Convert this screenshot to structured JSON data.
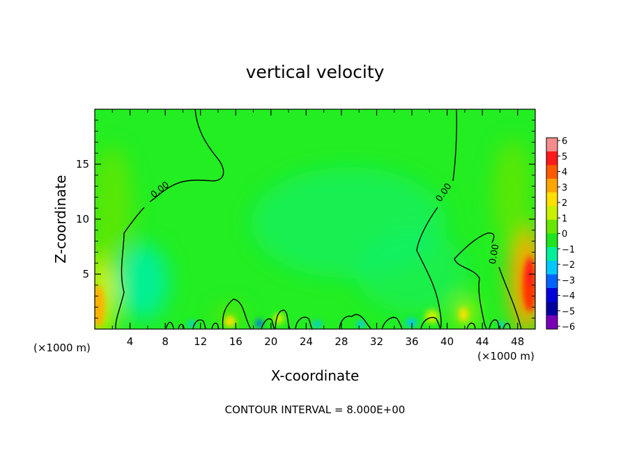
{
  "chart_data": {
    "type": "heatmap",
    "title": "vertical velocity",
    "xlabel": "X-coordinate",
    "ylabel": "Z-coordinate",
    "x_unit_label": "(×1000 m)",
    "z_unit_label": "(×1000 m)",
    "xlim": [
      0,
      50
    ],
    "ylim": [
      0,
      20
    ],
    "x_ticks": [
      "4",
      "8",
      "12",
      "16",
      "20",
      "24",
      "28",
      "32",
      "36",
      "40",
      "44",
      "48"
    ],
    "y_ticks": [
      "5",
      "10",
      "15"
    ],
    "contour_labels": [
      "0.00",
      "0.00",
      "0.00"
    ],
    "footer": "CONTOUR INTERVAL = 8.000E+00",
    "colorbar": {
      "levels": [
        "6",
        "5",
        "4",
        "3",
        "2",
        "1",
        "0",
        "−1",
        "−2",
        "−3",
        "−4",
        "−5",
        "−6"
      ],
      "colors": [
        "#f58c8c",
        "#ff1a1a",
        "#ff5a00",
        "#ffa500",
        "#ffe000",
        "#c8f000",
        "#66e600",
        "#1ee61e",
        "#00f09a",
        "#00c8ff",
        "#0064ff",
        "#0000dc",
        "#0000a0",
        "#7a00b8"
      ]
    },
    "grid": false,
    "legend_position": "right"
  }
}
